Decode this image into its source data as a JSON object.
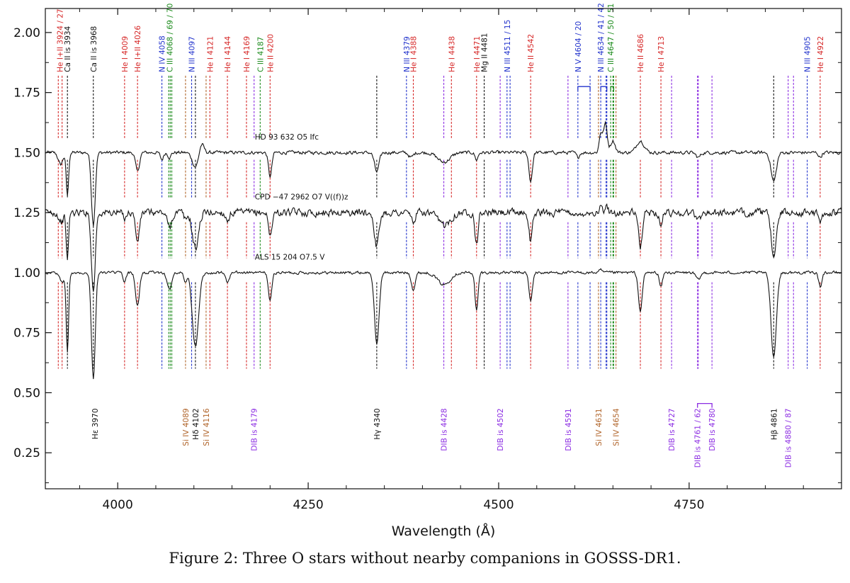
{
  "caption": "Figure 2: Three O stars without nearby companions in GOSSS-DR1.",
  "colors": {
    "red": "#d62828",
    "blue": "#2233cc",
    "green": "#1a8a1a",
    "black": "#111111",
    "purple": "#8b2be2",
    "brown": "#b0642a"
  },
  "chart_data": {
    "type": "line",
    "xlabel": "Wavelength (Å)",
    "ylabel": "",
    "xlim": [
      3905,
      4950
    ],
    "ylim": [
      0.1,
      2.1
    ],
    "x_ticks": [
      4000,
      4250,
      4500,
      4750
    ],
    "y_ticks": [
      0.25,
      0.5,
      0.75,
      1.0,
      1.25,
      1.5,
      1.75,
      2.0
    ],
    "x_tick_labels": [
      "4000",
      "4250",
      "4500",
      "4750"
    ],
    "y_tick_labels": [
      "0.25",
      "0.50",
      "0.75",
      "1.00",
      "1.25",
      "1.50",
      "1.75",
      "2.00"
    ],
    "series": [
      {
        "name": "HD 93 632   O5 Ifc",
        "continuum": 1.5,
        "label_x": 4180,
        "label_y": 1.555,
        "noise": 0.006,
        "features": [
          [
            3925,
            -0.05,
            3
          ],
          [
            3934,
            -0.18,
            1.6
          ],
          [
            3968,
            -0.3,
            2.5
          ],
          [
            4026,
            -0.08,
            2.5
          ],
          [
            4058,
            -0.03,
            2
          ],
          [
            4068,
            -0.02,
            2
          ],
          [
            4102,
            -0.06,
            4
          ],
          [
            4110,
            0.04,
            3
          ],
          [
            4200,
            -0.1,
            2.2
          ],
          [
            4340,
            -0.08,
            3
          ],
          [
            4385,
            -0.02,
            3
          ],
          [
            4428,
            -0.04,
            8
          ],
          [
            4471,
            -0.03,
            2
          ],
          [
            4542,
            -0.12,
            2.2
          ],
          [
            4604,
            -0.02,
            2
          ],
          [
            4634,
            0.08,
            2
          ],
          [
            4640,
            0.12,
            2.5
          ],
          [
            4650,
            0.05,
            3
          ],
          [
            4686,
            0.05,
            5
          ],
          [
            4762,
            -0.02,
            3
          ],
          [
            4861,
            -0.12,
            3.5
          ],
          [
            4922,
            -0.02,
            2
          ]
        ]
      },
      {
        "name": "CPD −47 2962   O7 V((f))z",
        "continuum": 1.25,
        "label_x": 4180,
        "label_y": 1.305,
        "noise": 0.013,
        "features": [
          [
            3926,
            -0.04,
            3
          ],
          [
            3934,
            -0.2,
            1.5
          ],
          [
            3968,
            -0.33,
            2.5
          ],
          [
            4009,
            -0.02,
            2
          ],
          [
            4026,
            -0.12,
            2.5
          ],
          [
            4068,
            -0.06,
            3
          ],
          [
            4089,
            -0.03,
            2
          ],
          [
            4102,
            -0.15,
            4
          ],
          [
            4144,
            -0.03,
            2.5
          ],
          [
            4200,
            -0.1,
            2.2
          ],
          [
            4340,
            -0.14,
            3
          ],
          [
            4388,
            -0.04,
            2.5
          ],
          [
            4428,
            -0.05,
            8
          ],
          [
            4471,
            -0.13,
            2
          ],
          [
            4542,
            -0.12,
            2.2
          ],
          [
            4604,
            -0.02,
            2
          ],
          [
            4634,
            0.02,
            2
          ],
          [
            4642,
            0.02,
            2
          ],
          [
            4686,
            -0.14,
            2.5
          ],
          [
            4713,
            -0.05,
            2
          ],
          [
            4762,
            -0.03,
            3
          ],
          [
            4861,
            -0.17,
            3.5
          ],
          [
            4922,
            -0.05,
            2
          ]
        ]
      },
      {
        "name": "ALS 15 204   O7.5 V",
        "continuum": 1.0,
        "label_x": 4180,
        "label_y": 1.055,
        "noise": 0.005,
        "features": [
          [
            3927,
            -0.04,
            3
          ],
          [
            3934,
            -0.33,
            1.6
          ],
          [
            3968,
            -0.44,
            2.5
          ],
          [
            4009,
            -0.04,
            2
          ],
          [
            4026,
            -0.14,
            2.5
          ],
          [
            4068,
            -0.07,
            3
          ],
          [
            4089,
            -0.04,
            2
          ],
          [
            4102,
            -0.31,
            4
          ],
          [
            4144,
            -0.04,
            2.5
          ],
          [
            4200,
            -0.12,
            2.2
          ],
          [
            4340,
            -0.3,
            3
          ],
          [
            4388,
            -0.07,
            2.5
          ],
          [
            4428,
            -0.05,
            8
          ],
          [
            4471,
            -0.16,
            2
          ],
          [
            4542,
            -0.12,
            2.2
          ],
          [
            4634,
            0.01,
            2
          ],
          [
            4686,
            -0.16,
            2.5
          ],
          [
            4713,
            -0.06,
            2
          ],
          [
            4762,
            -0.03,
            3
          ],
          [
            4861,
            -0.35,
            3.5
          ],
          [
            4922,
            -0.06,
            2
          ]
        ]
      }
    ],
    "top_line_labels": [
      {
        "x": 3924,
        "color": "red",
        "text": "He I+II 3924 / 27"
      },
      {
        "x": 3934,
        "color": "black",
        "text": "Ca II is 3934"
      },
      {
        "x": 3968,
        "color": "black",
        "text": "Ca II is 3968"
      },
      {
        "x": 4009,
        "color": "red",
        "text": "He I 4009"
      },
      {
        "x": 4026,
        "color": "red",
        "text": "He I+II 4026"
      },
      {
        "x": 4058,
        "color": "blue",
        "text": "N IV 4058"
      },
      {
        "x": 4068,
        "color": "green",
        "text": "C III 4068 / 69 / 70"
      },
      {
        "x": 4097,
        "color": "blue",
        "text": "N III 4097"
      },
      {
        "x": 4121,
        "color": "red",
        "text": "He I 4121"
      },
      {
        "x": 4144,
        "color": "red",
        "text": "He I 4144"
      },
      {
        "x": 4169,
        "color": "red",
        "text": "He I 4169"
      },
      {
        "x": 4187,
        "color": "green",
        "text": "C III 4187"
      },
      {
        "x": 4200,
        "color": "red",
        "text": "He II 4200"
      },
      {
        "x": 4379,
        "color": "blue",
        "text": "N III 4379"
      },
      {
        "x": 4388,
        "color": "red",
        "text": "He I 4388"
      },
      {
        "x": 4438,
        "color": "red",
        "text": "He I 4438"
      },
      {
        "x": 4471,
        "color": "red",
        "text": "He I 4471"
      },
      {
        "x": 4481,
        "color": "black",
        "text": "Mg II 4481"
      },
      {
        "x": 4511,
        "color": "blue",
        "text": "N III 4511 / 15"
      },
      {
        "x": 4542,
        "color": "red",
        "text": "He II 4542"
      },
      {
        "x": 4604,
        "color": "blue",
        "text": "N V 4604 / 20"
      },
      {
        "x": 4634,
        "color": "blue",
        "text": "N III 4634 / 41 / 42"
      },
      {
        "x": 4647,
        "color": "green",
        "text": "C III 4647 / 50 / 51"
      },
      {
        "x": 4686,
        "color": "red",
        "text": "He II 4686"
      },
      {
        "x": 4713,
        "color": "red",
        "text": "He I 4713"
      },
      {
        "x": 4905,
        "color": "blue",
        "text": "N III 4905"
      },
      {
        "x": 4922,
        "color": "red",
        "text": "He I 4922"
      }
    ],
    "bottom_line_labels": [
      {
        "x": 3970,
        "color": "black",
        "text": "Hε 3970"
      },
      {
        "x": 4089,
        "color": "brown",
        "text": "Si IV 4089"
      },
      {
        "x": 4102,
        "color": "black",
        "text": "Hδ 4102"
      },
      {
        "x": 4116,
        "color": "brown",
        "text": "Si IV 4116"
      },
      {
        "x": 4179,
        "color": "purple",
        "text": "DIB is 4179"
      },
      {
        "x": 4340,
        "color": "black",
        "text": "Hγ 4340"
      },
      {
        "x": 4428,
        "color": "purple",
        "text": "DIB is 4428"
      },
      {
        "x": 4502,
        "color": "purple",
        "text": "DIB is 4502"
      },
      {
        "x": 4591,
        "color": "purple",
        "text": "DIB is 4591"
      },
      {
        "x": 4631,
        "color": "brown",
        "text": "Si IV 4631"
      },
      {
        "x": 4654,
        "color": "brown",
        "text": "Si IV 4654"
      },
      {
        "x": 4727,
        "color": "purple",
        "text": "DIB is 4727"
      },
      {
        "x": 4761,
        "color": "purple",
        "text": "DIB is 4761 / 62"
      },
      {
        "x": 4780,
        "color": "purple",
        "text": "DIB is 4780"
      },
      {
        "x": 4861,
        "color": "black",
        "text": "Hβ 4861"
      },
      {
        "x": 4880,
        "color": "purple",
        "text": "DIB is 4880 / 87"
      }
    ],
    "marker_lines": [
      {
        "x": 3922,
        "color": "red"
      },
      {
        "x": 3927,
        "color": "red"
      },
      {
        "x": 3934,
        "color": "black"
      },
      {
        "x": 3968,
        "color": "black"
      },
      {
        "x": 4009,
        "color": "red"
      },
      {
        "x": 4026,
        "color": "red"
      },
      {
        "x": 4058,
        "color": "blue"
      },
      {
        "x": 4067,
        "color": "green"
      },
      {
        "x": 4069,
        "color": "green"
      },
      {
        "x": 4071,
        "color": "green"
      },
      {
        "x": 4089,
        "color": "brown"
      },
      {
        "x": 4097,
        "color": "blue"
      },
      {
        "x": 4102,
        "color": "black"
      },
      {
        "x": 4116,
        "color": "brown"
      },
      {
        "x": 4121,
        "color": "red"
      },
      {
        "x": 4144,
        "color": "red"
      },
      {
        "x": 4169,
        "color": "red"
      },
      {
        "x": 4179,
        "color": "purple"
      },
      {
        "x": 4187,
        "color": "green"
      },
      {
        "x": 4200,
        "color": "red"
      },
      {
        "x": 4340,
        "color": "black"
      },
      {
        "x": 4379,
        "color": "blue"
      },
      {
        "x": 4388,
        "color": "red"
      },
      {
        "x": 4428,
        "color": "purple"
      },
      {
        "x": 4438,
        "color": "red"
      },
      {
        "x": 4471,
        "color": "red"
      },
      {
        "x": 4481,
        "color": "black"
      },
      {
        "x": 4502,
        "color": "purple"
      },
      {
        "x": 4511,
        "color": "blue"
      },
      {
        "x": 4515,
        "color": "blue"
      },
      {
        "x": 4542,
        "color": "red"
      },
      {
        "x": 4591,
        "color": "purple"
      },
      {
        "x": 4604,
        "color": "blue"
      },
      {
        "x": 4620,
        "color": "blue"
      },
      {
        "x": 4631,
        "color": "brown"
      },
      {
        "x": 4634,
        "color": "blue"
      },
      {
        "x": 4641,
        "color": "blue"
      },
      {
        "x": 4642,
        "color": "blue"
      },
      {
        "x": 4647,
        "color": "green"
      },
      {
        "x": 4650,
        "color": "green"
      },
      {
        "x": 4651,
        "color": "green"
      },
      {
        "x": 4654,
        "color": "brown"
      },
      {
        "x": 4686,
        "color": "red"
      },
      {
        "x": 4713,
        "color": "red"
      },
      {
        "x": 4727,
        "color": "purple"
      },
      {
        "x": 4761,
        "color": "purple"
      },
      {
        "x": 4762,
        "color": "purple"
      },
      {
        "x": 4780,
        "color": "purple"
      },
      {
        "x": 4861,
        "color": "black"
      },
      {
        "x": 4880,
        "color": "purple"
      },
      {
        "x": 4887,
        "color": "purple"
      },
      {
        "x": 4905,
        "color": "blue"
      },
      {
        "x": 4922,
        "color": "red"
      }
    ],
    "brackets": [
      {
        "x1": 4604,
        "x2": 4620,
        "y": 1.775,
        "color": "blue"
      },
      {
        "x1": 4634,
        "x2": 4642,
        "y": 1.775,
        "color": "blue"
      },
      {
        "x1": 4647,
        "x2": 4651,
        "y": 1.775,
        "color": "green"
      },
      {
        "x1": 4761,
        "x2": 4780,
        "y": 0.455,
        "color": "purple"
      }
    ]
  }
}
